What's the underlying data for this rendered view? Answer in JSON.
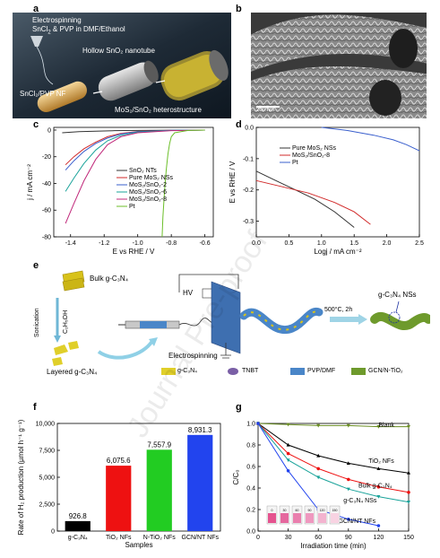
{
  "panels": {
    "a": {
      "letter": "a",
      "labels": {
        "electrospinning": "Electrospinning",
        "solution_pre": "SnCl",
        "solution_post": " & PVP in DMF/Ethanol",
        "nanotube": "Hollow SnO₂ nanotube",
        "fiber": "SnCl₂/PVP NF",
        "hetero": "MoS₂/SnO₂ heterostructure"
      }
    },
    "b": {
      "letter": "b",
      "scale": "200 nm"
    },
    "c": {
      "letter": "c"
    },
    "d": {
      "letter": "d"
    },
    "e": {
      "letter": "e",
      "labels": {
        "bulk": "Bulk g-C₃N₄",
        "sonication": "Sonication",
        "solvent": "C₂H₅OH",
        "layered": "Layered g-C₃N₄",
        "hv": "HV",
        "electrospinning": "Electrospinning",
        "anneal": "500°C, 2h",
        "nss": "g-C₃N₄ NSs"
      },
      "legend": [
        {
          "label": "g-C₃N₄",
          "color": "#d8c21a"
        },
        {
          "label": "TNBT",
          "color": "#7a5fa6"
        },
        {
          "label": "PVP/DMF",
          "color": "#4a86c8"
        },
        {
          "label": "GCN/N-TiO₂",
          "color": "#6e9a2c"
        }
      ]
    },
    "f": {
      "letter": "f"
    },
    "g": {
      "letter": "g",
      "inset_labels": [
        "0",
        "30",
        "60",
        "90",
        "120",
        "150"
      ]
    }
  },
  "watermark": "Journal Pre-proof",
  "chart_data": [
    {
      "id": "c",
      "type": "line",
      "xlabel": "E vs RHE / V",
      "ylabel": "j / mA cm⁻²",
      "xlim": [
        -1.5,
        -0.55
      ],
      "ylim": [
        -80,
        2
      ],
      "xticks": [
        "-1.4",
        "-1.2",
        "-1.0",
        "-0.8",
        "-0.6"
      ],
      "yticks": [
        "0",
        "-20",
        "-40",
        "-60",
        "-80"
      ],
      "legend_position": "center-right",
      "series": [
        {
          "name": "SnO₂ NTs",
          "color": "#333333",
          "x": [
            -1.45,
            -1.35,
            -1.25,
            -1.15,
            -1.0,
            -0.8,
            -0.6
          ],
          "y": [
            -2,
            -1.2,
            -0.8,
            -0.5,
            -0.3,
            -0.1,
            0
          ]
        },
        {
          "name": "Pure MoS₂ NSs",
          "color": "#d12a2a",
          "x": [
            -1.43,
            -1.38,
            -1.32,
            -1.25,
            -1.18,
            -1.1,
            -1.0,
            -0.8,
            -0.6
          ],
          "y": [
            -26,
            -20,
            -14,
            -9,
            -5,
            -2.5,
            -1,
            -0.2,
            0
          ]
        },
        {
          "name": "MoS₂/SnO₂-2",
          "color": "#3a5fcd",
          "x": [
            -1.43,
            -1.38,
            -1.32,
            -1.25,
            -1.18,
            -1.1,
            -1.0,
            -0.8,
            -0.6
          ],
          "y": [
            -30,
            -23,
            -16,
            -10,
            -6,
            -3,
            -1.2,
            -0.2,
            0
          ]
        },
        {
          "name": "MoS₂/SnO₂-6",
          "color": "#1aa39a",
          "x": [
            -1.43,
            -1.38,
            -1.32,
            -1.25,
            -1.18,
            -1.1,
            -1.0,
            -0.8,
            -0.6
          ],
          "y": [
            -46,
            -36,
            -25,
            -15,
            -8,
            -4,
            -1.5,
            -0.3,
            0
          ]
        },
        {
          "name": "MoS₂/SnO₂-8",
          "color": "#c0287a",
          "x": [
            -1.43,
            -1.38,
            -1.32,
            -1.25,
            -1.18,
            -1.1,
            -1.0,
            -0.8,
            -0.6
          ],
          "y": [
            -70,
            -55,
            -38,
            -22,
            -11,
            -5,
            -2,
            -0.4,
            0
          ]
        },
        {
          "name": "Pt",
          "color": "#6cbf2a",
          "x": [
            -0.855,
            -0.85,
            -0.84,
            -0.83,
            -0.82,
            -0.81,
            -0.8,
            -0.78,
            -0.7,
            -0.6
          ],
          "y": [
            -80,
            -65,
            -45,
            -30,
            -18,
            -10,
            -5,
            -2,
            -0.3,
            0
          ]
        }
      ]
    },
    {
      "id": "d",
      "type": "line",
      "xlabel": "Logj / mA cm⁻²",
      "ylabel": "E vs RHE / V",
      "xlim": [
        0.0,
        2.5
      ],
      "ylim": [
        -0.35,
        0.0
      ],
      "xticks": [
        "0.0",
        "0.5",
        "1.0",
        "1.5",
        "2.0",
        "2.5"
      ],
      "yticks": [
        "0.0",
        "-0.1",
        "-0.2",
        "-0.3"
      ],
      "legend_position": "center",
      "series": [
        {
          "name": "Pure MoS₂ NSs",
          "color": "#333333",
          "x": [
            0.0,
            0.3,
            0.6,
            0.9,
            1.2,
            1.5
          ],
          "y": [
            -0.14,
            -0.17,
            -0.2,
            -0.23,
            -0.27,
            -0.32
          ]
        },
        {
          "name": "MoS₂/SnO₂-8",
          "color": "#d12a2a",
          "x": [
            0.0,
            0.4,
            0.8,
            1.2,
            1.5,
            1.75
          ],
          "y": [
            -0.17,
            -0.19,
            -0.21,
            -0.24,
            -0.27,
            -0.31
          ]
        },
        {
          "name": "Pt",
          "color": "#3a5fcd",
          "x": [
            1.0,
            1.4,
            1.8,
            2.1,
            2.3,
            2.5
          ],
          "y": [
            0.0,
            -0.01,
            -0.025,
            -0.04,
            -0.055,
            -0.075
          ]
        }
      ]
    },
    {
      "id": "f",
      "type": "bar",
      "xlabel": "Samples",
      "ylabel": "Rate of H₂ production (µmol h⁻¹ g⁻¹)",
      "ylim": [
        0,
        10000
      ],
      "yticks": [
        "0",
        "2,500",
        "5,000",
        "7,500",
        "10,000"
      ],
      "categories": [
        "g-C₃N₄",
        "TiO₂ NFs",
        "N-TiO₂ NFs",
        "GCN/NT NFs"
      ],
      "values": [
        926.8,
        6075.6,
        7557.9,
        8931.3
      ],
      "value_labels": [
        "926.8",
        "6,075.6",
        "7,557.9",
        "8,931.3"
      ],
      "colors": [
        "#000000",
        "#ee1111",
        "#22cc22",
        "#2244ee"
      ]
    },
    {
      "id": "g",
      "type": "line",
      "xlabel": "Irradiation time (min)",
      "ylabel": "C/C₀",
      "xlim": [
        0,
        150
      ],
      "ylim": [
        0.0,
        1.0
      ],
      "xticks": [
        "0",
        "30",
        "60",
        "90",
        "120",
        "150"
      ],
      "yticks": [
        "0.0",
        "0.2",
        "0.4",
        "0.6",
        "0.8",
        "1.0"
      ],
      "series": [
        {
          "name": "Blank",
          "color": "#6b8e23",
          "marker": "triangle-down",
          "x": [
            0,
            30,
            60,
            90,
            120,
            150
          ],
          "y": [
            1.0,
            0.99,
            0.98,
            0.98,
            0.97,
            0.97
          ]
        },
        {
          "name": "TiO₂ NFs",
          "color": "#000000",
          "marker": "triangle",
          "x": [
            0,
            30,
            60,
            90,
            120,
            150
          ],
          "y": [
            1.0,
            0.8,
            0.7,
            0.63,
            0.58,
            0.54
          ]
        },
        {
          "name": "Bulk g-C₃N₄",
          "color": "#ee1111",
          "marker": "circle",
          "x": [
            0,
            30,
            60,
            90,
            120,
            150
          ],
          "y": [
            1.0,
            0.72,
            0.58,
            0.48,
            0.41,
            0.36
          ]
        },
        {
          "name": "g-C₃N₄ NSs",
          "color": "#1aa39a",
          "marker": "triangle-down",
          "x": [
            0,
            30,
            60,
            90,
            120,
            150
          ],
          "y": [
            1.0,
            0.66,
            0.5,
            0.39,
            0.32,
            0.27
          ]
        },
        {
          "name": "GCN/NT NFs",
          "color": "#2244ee",
          "marker": "circle",
          "x": [
            0,
            30,
            60,
            90,
            120
          ],
          "y": [
            1.0,
            0.56,
            0.2,
            0.11,
            0.05
          ]
        }
      ]
    }
  ]
}
